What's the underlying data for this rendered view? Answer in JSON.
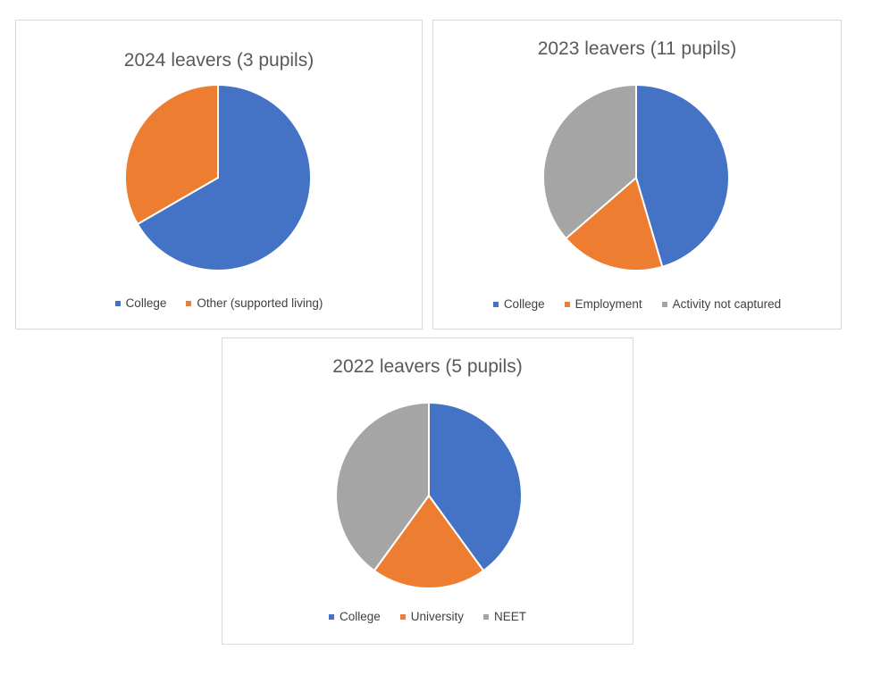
{
  "chart_data": [
    {
      "type": "pie",
      "title": "2024 leavers (3 pupils)",
      "categories": [
        "College",
        "Other (supported living)"
      ],
      "values": [
        2,
        1
      ],
      "colors": [
        "#4472c4",
        "#ed7d31"
      ],
      "legend_position": "bottom"
    },
    {
      "type": "pie",
      "title": "2023 leavers (11 pupils)",
      "categories": [
        "College",
        "Employment",
        "Activity not captured"
      ],
      "values": [
        5,
        2,
        4
      ],
      "colors": [
        "#4472c4",
        "#ed7d31",
        "#a5a5a5"
      ],
      "legend_position": "bottom"
    },
    {
      "type": "pie",
      "title": "2022 leavers (5 pupils)",
      "categories": [
        "College",
        "University",
        "NEET"
      ],
      "values": [
        2,
        1,
        2
      ],
      "colors": [
        "#4472c4",
        "#ed7d31",
        "#a5a5a5"
      ],
      "legend_position": "bottom"
    }
  ]
}
